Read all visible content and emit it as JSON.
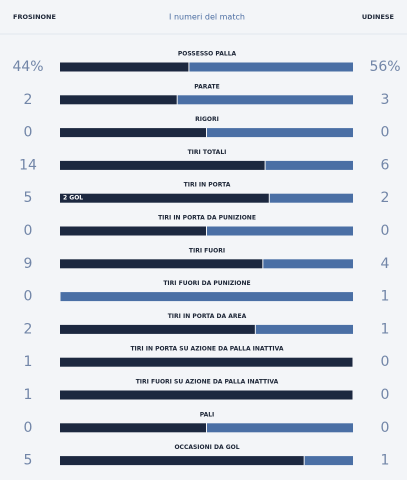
{
  "header": {
    "home": "FROSINONE",
    "title": "I numeri del match",
    "away": "UDINESE"
  },
  "rows": [
    {
      "label": "POSSESSO PALLA",
      "home": 44,
      "home_label": "44%",
      "away": 56,
      "away_label": "56%"
    },
    {
      "label": "PARATE",
      "home": 2,
      "away": 3
    },
    {
      "label": "RIGORI",
      "home": 0,
      "away": 0
    },
    {
      "label": "TIRI TOTALI",
      "home": 14,
      "away": 6
    },
    {
      "label": "TIRI IN PORTA",
      "home": 5,
      "away": 2,
      "note": "2 GOL"
    },
    {
      "label": "TIRI IN PORTA DA PUNIZIONE",
      "home": 0,
      "away": 0
    },
    {
      "label": "TIRI FUORI",
      "home": 9,
      "away": 4
    },
    {
      "label": "TIRI FUORI DA PUNIZIONE",
      "home": 0,
      "away": 1
    },
    {
      "label": "TIRI IN PORTA DA AREA",
      "home": 2,
      "away": 1
    },
    {
      "label": "TIRI IN PORTA SU AZIONE DA PALLA INATTIVA",
      "home": 1,
      "away": 0
    },
    {
      "label": "TIRI FUORI SU AZIONE DA PALLA INATTIVA",
      "home": 1,
      "away": 0
    },
    {
      "label": "PALI",
      "home": 0,
      "away": 0
    },
    {
      "label": "OCCASIONI DA GOL",
      "home": 5,
      "away": 1
    }
  ]
}
